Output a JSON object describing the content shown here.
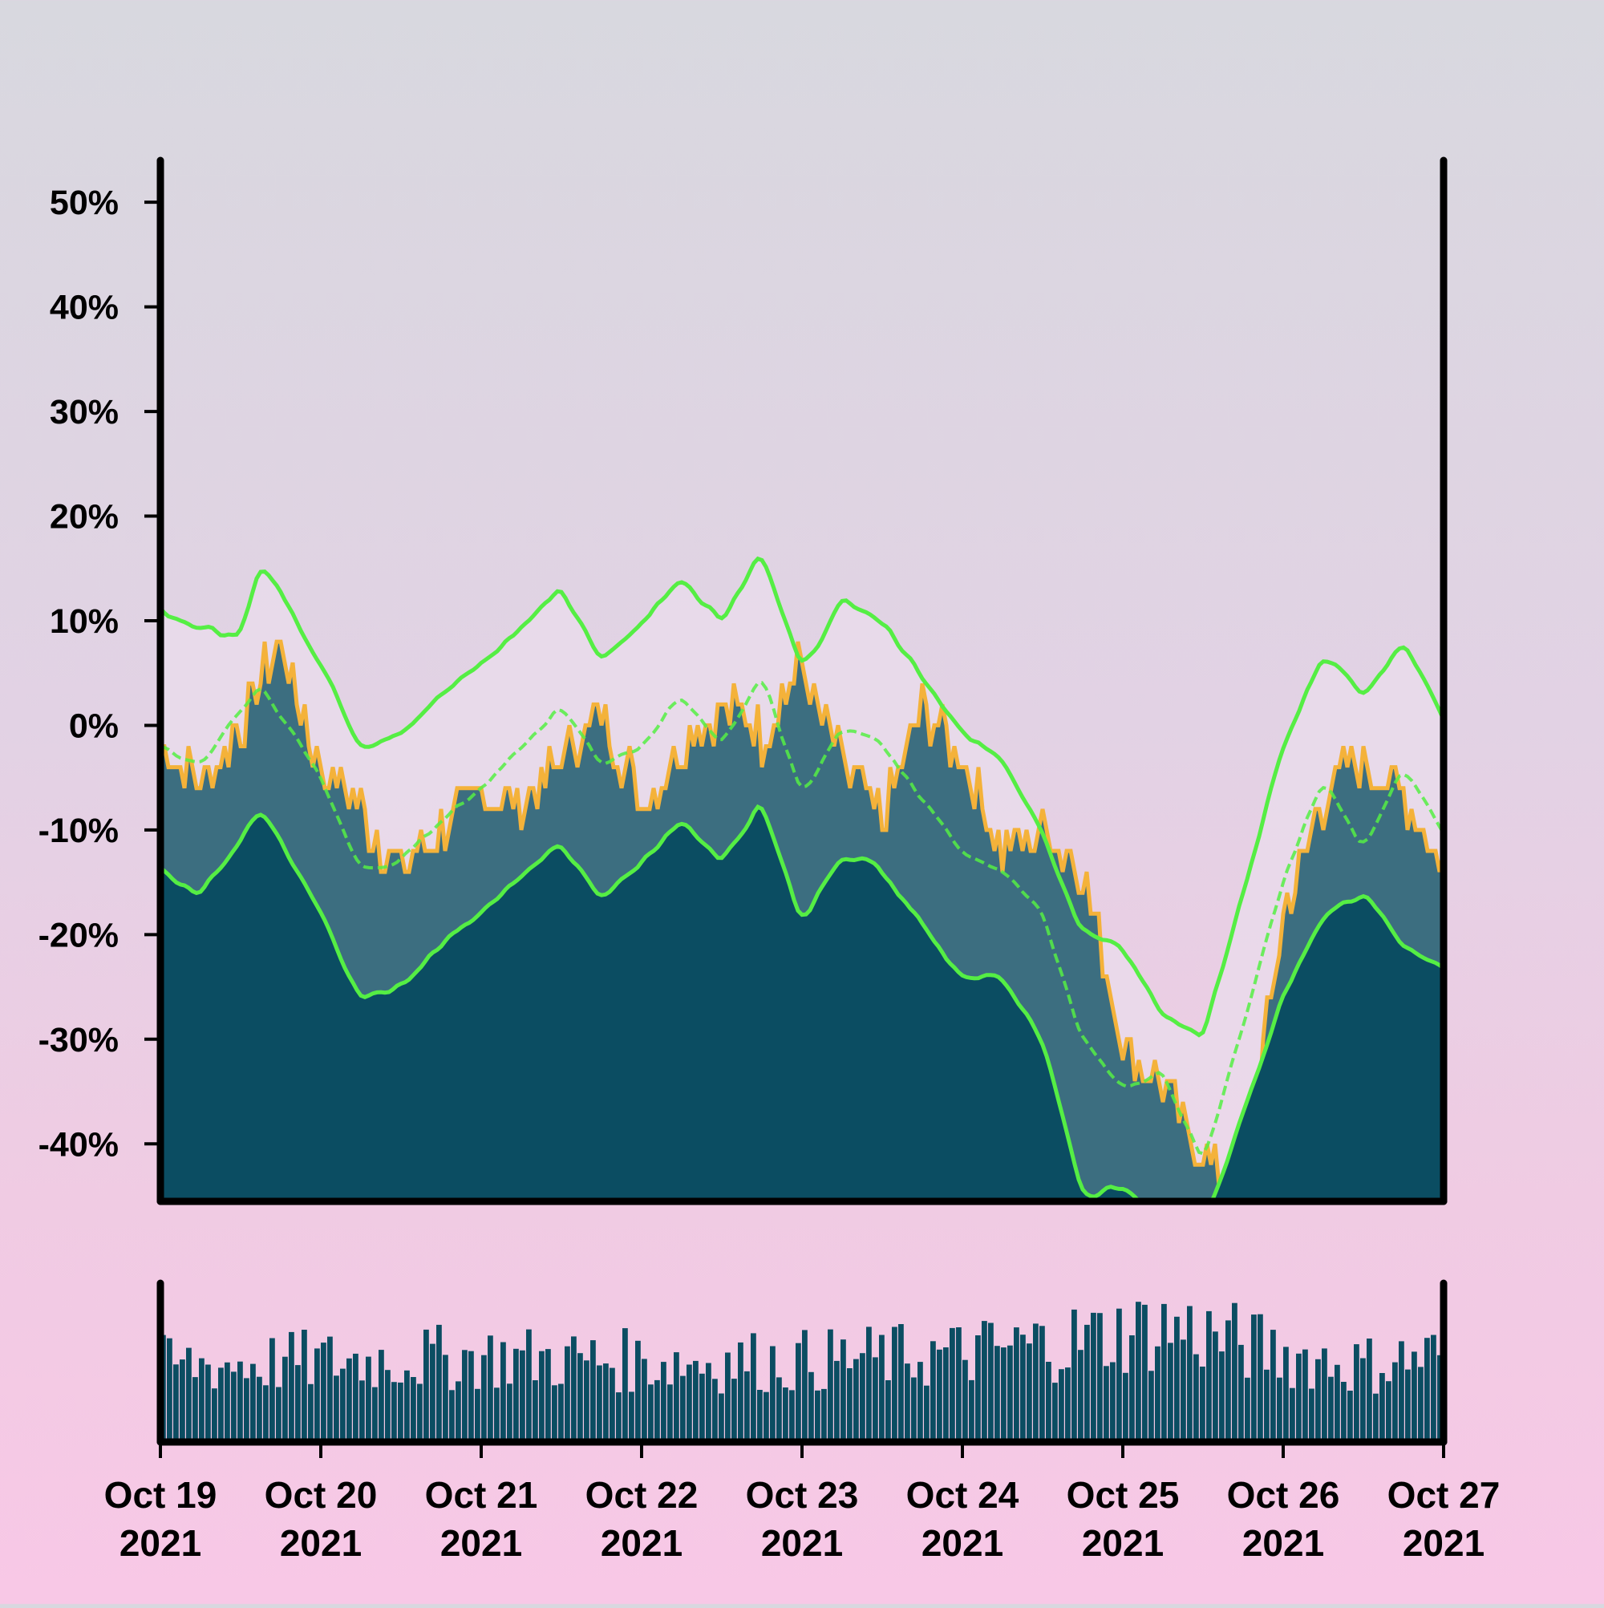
{
  "chart_data": [
    {
      "type": "area",
      "ylim": [
        -45.5,
        54
      ],
      "xlim": [
        "2021-10-19",
        "2021-10-27"
      ],
      "yticks": [
        -40,
        -30,
        -20,
        -10,
        0,
        10,
        20,
        30,
        40,
        50
      ],
      "ytick_labels": [
        "-40%",
        "-30%",
        "-20%",
        "-10%",
        "0%",
        "10%",
        "20%",
        "30%",
        "40%",
        "50%"
      ],
      "grid": false,
      "colors": {
        "price_line": "#f4b23a",
        "band_fill": "#3c6e80",
        "lower_fill": "#0b4d62",
        "upper_fill": "#eadcec",
        "envelope": "#55ee44",
        "axis": "#000000"
      },
      "price_series": {
        "x": [
          "2021-10-19 00:00",
          "2021-10-19 06:00",
          "2021-10-19 12:00",
          "2021-10-19 15:00",
          "2021-10-19 18:00",
          "2021-10-20 00:00",
          "2021-10-20 06:00",
          "2021-10-20 12:00",
          "2021-10-20 18:00",
          "2021-10-21 00:00",
          "2021-10-21 06:00",
          "2021-10-21 12:00",
          "2021-10-21 18:00",
          "2021-10-22 00:00",
          "2021-10-22 06:00",
          "2021-10-22 12:00",
          "2021-10-22 18:00",
          "2021-10-23 00:00",
          "2021-10-23 06:00",
          "2021-10-23 12:00",
          "2021-10-23 18:00",
          "2021-10-24 00:00",
          "2021-10-24 06:00",
          "2021-10-24 12:00",
          "2021-10-24 18:00",
          "2021-10-25 00:00",
          "2021-10-25 06:00",
          "2021-10-25 12:00",
          "2021-10-25 18:00",
          "2021-10-26 00:00",
          "2021-10-26 06:00",
          "2021-10-26 12:00",
          "2021-10-26 18:00",
          "2021-10-27 00:00"
        ],
        "y": [
          -2,
          -5,
          0,
          4,
          8,
          -4,
          -8,
          -14,
          -10,
          -6,
          -8,
          -3,
          1,
          -7,
          -2,
          2,
          -1,
          6,
          -4,
          -9,
          2,
          -3,
          -12,
          -10,
          -14,
          -30,
          -35,
          -41,
          -44,
          -18,
          -7,
          -3,
          -7,
          -13
        ]
      },
      "envelope_upper": {
        "x": [
          "2021-10-19 00:00",
          "2021-10-19 12:00",
          "2021-10-19 15:00",
          "2021-10-20 00:00",
          "2021-10-20 06:00",
          "2021-10-20 12:00",
          "2021-10-20 18:00",
          "2021-10-21 00:00",
          "2021-10-21 12:00",
          "2021-10-21 18:00",
          "2021-10-22 00:00",
          "2021-10-22 06:00",
          "2021-10-22 12:00",
          "2021-10-22 18:00",
          "2021-10-23 00:00",
          "2021-10-23 06:00",
          "2021-10-23 12:00",
          "2021-10-24 00:00",
          "2021-10-24 06:00",
          "2021-10-24 12:00",
          "2021-10-24 18:00",
          "2021-10-25 00:00",
          "2021-10-25 06:00",
          "2021-10-25 12:00",
          "2021-10-26 00:00",
          "2021-10-26 06:00",
          "2021-10-26 12:00",
          "2021-10-26 18:00",
          "2021-10-27 00:00"
        ],
        "y": [
          11,
          8,
          16,
          6,
          -2,
          -1,
          3,
          6,
          13,
          6,
          10,
          14,
          10,
          17,
          5,
          12,
          10,
          -1,
          -3,
          -10,
          -20,
          -21,
          -28,
          -30,
          -2,
          7,
          3,
          8,
          1
        ]
      },
      "envelope_middle": {
        "x": [
          "2021-10-19 00:00",
          "2021-10-19 06:00",
          "2021-10-19 15:00",
          "2021-10-20 00:00",
          "2021-10-20 06:00",
          "2021-10-20 12:00",
          "2021-10-20 18:00",
          "2021-10-21 00:00",
          "2021-10-21 12:00",
          "2021-10-21 18:00",
          "2021-10-22 00:00",
          "2021-10-22 06:00",
          "2021-10-22 12:00",
          "2021-10-22 18:00",
          "2021-10-23 00:00",
          "2021-10-23 06:00",
          "2021-10-23 12:00",
          "2021-10-24 00:00",
          "2021-10-24 06:00",
          "2021-10-24 12:00",
          "2021-10-24 18:00",
          "2021-10-25 00:00",
          "2021-10-25 06:00",
          "2021-10-25 12:00",
          "2021-10-26 00:00",
          "2021-10-26 06:00",
          "2021-10-26 12:00",
          "2021-10-26 18:00",
          "2021-10-27 00:00"
        ],
        "y": [
          -2,
          -4,
          4,
          -5,
          -14,
          -13,
          -9,
          -6,
          2,
          -4,
          -2,
          3,
          -2,
          5,
          -7,
          0,
          -2,
          -12,
          -14,
          -18,
          -30,
          -35,
          -33,
          -42,
          -15,
          -5,
          -12,
          -4,
          -10
        ]
      },
      "envelope_lower": {
        "x": [
          "2021-10-19 00:00",
          "2021-10-19 06:00",
          "2021-10-19 15:00",
          "2021-10-20 00:00",
          "2021-10-20 06:00",
          "2021-10-20 12:00",
          "2021-10-20 18:00",
          "2021-10-21 00:00",
          "2021-10-21 12:00",
          "2021-10-21 18:00",
          "2021-10-22 00:00",
          "2021-10-22 06:00",
          "2021-10-22 12:00",
          "2021-10-22 18:00",
          "2021-10-23 00:00",
          "2021-10-23 06:00",
          "2021-10-23 12:00",
          "2021-10-24 00:00",
          "2021-10-24 06:00",
          "2021-10-24 12:00",
          "2021-10-24 18:00",
          "2021-10-25 00:00",
          "2021-10-25 06:00",
          "2021-10-25 12:00",
          "2021-10-26 00:00",
          "2021-10-26 06:00",
          "2021-10-26 12:00",
          "2021-10-26 18:00",
          "2021-10-27 00:00"
        ],
        "y": [
          -14,
          -16,
          -8,
          -18,
          -26,
          -25,
          -21,
          -18,
          -11,
          -17,
          -13,
          -9,
          -13,
          -7,
          -19,
          -12,
          -14,
          -24,
          -24,
          -30,
          -45,
          -44,
          -48,
          -48,
          -26,
          -18,
          -16,
          -21,
          -23
        ]
      }
    },
    {
      "type": "bar",
      "name": "volume",
      "x_start": "2021-10-19",
      "x_end": "2021-10-27",
      "bar_count": 200,
      "profile_x": [
        "2021-10-19 00:00",
        "2021-10-20 00:00",
        "2021-10-21 00:00",
        "2021-10-22 00:00",
        "2021-10-23 00:00",
        "2021-10-24 00:00",
        "2021-10-24 18:00",
        "2021-10-25 06:00",
        "2021-10-25 12:00",
        "2021-10-26 00:00",
        "2021-10-26 12:00",
        "2021-10-27 00:00"
      ],
      "profile_y": [
        0.52,
        0.55,
        0.58,
        0.55,
        0.55,
        0.6,
        0.7,
        0.78,
        0.74,
        0.6,
        0.52,
        0.6
      ],
      "ylim": [
        0,
        1
      ],
      "color": "#0b4d62"
    }
  ],
  "xaxis": {
    "tick_dates": [
      "2021-10-19",
      "2021-10-20",
      "2021-10-21",
      "2021-10-22",
      "2021-10-23",
      "2021-10-24",
      "2021-10-25",
      "2021-10-26",
      "2021-10-27"
    ],
    "tick_labels_line1": [
      "Oct 19",
      "Oct 20",
      "Oct 21",
      "Oct 22",
      "Oct 23",
      "Oct 24",
      "Oct 25",
      "Oct 26",
      "Oct 27"
    ],
    "tick_labels_line2": [
      "2021",
      "2021",
      "2021",
      "2021",
      "2021",
      "2021",
      "2021",
      "2021",
      "2021"
    ]
  }
}
